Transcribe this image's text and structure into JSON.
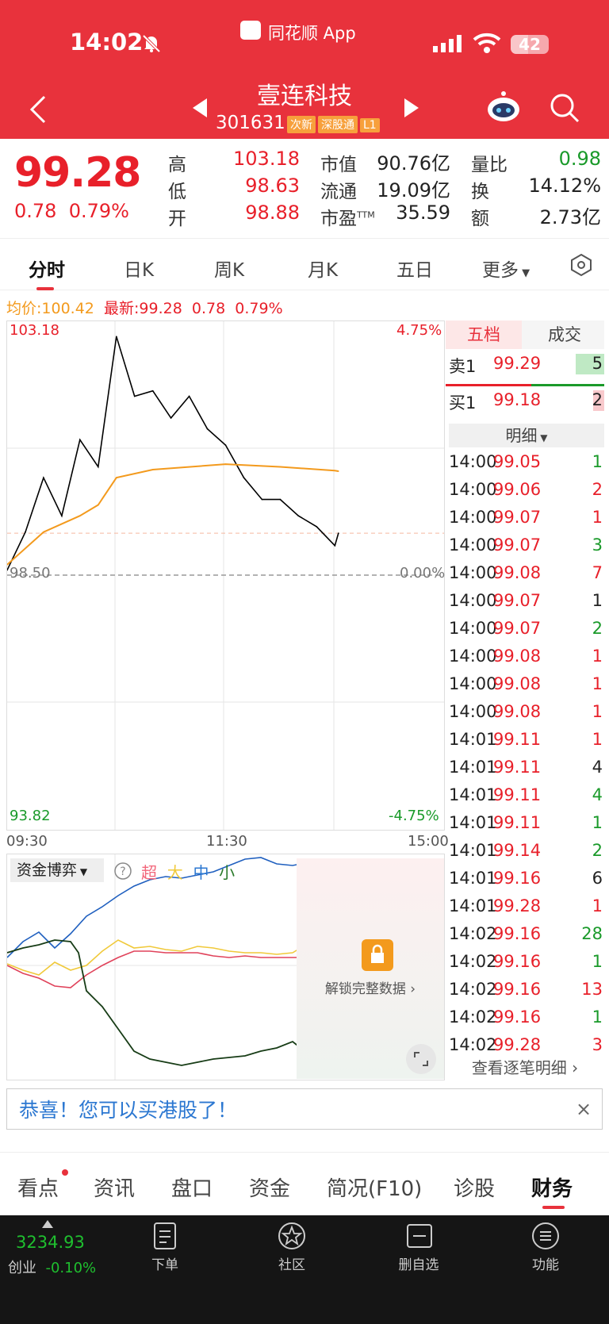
{
  "status_bar": {
    "time": "14:02",
    "app_name": "同花顺 App",
    "battery": "42"
  },
  "header": {
    "stock_name": "壹连科技",
    "stock_code": "301631",
    "tags": [
      "次新",
      "深股通",
      "L1"
    ]
  },
  "quote": {
    "price": "99.28",
    "change": "0.78",
    "change_pct": "0.79%",
    "high_label": "高",
    "high": "103.18",
    "low_label": "低",
    "low": "98.63",
    "open_label": "开",
    "open": "98.88",
    "mcap_label": "市值",
    "mcap": "90.76亿",
    "float_label": "流通",
    "float": "19.09亿",
    "pe_label": "市盈",
    "pe_sup": "TTM",
    "pe": "35.59",
    "vr_label": "量比",
    "vr": "0.98",
    "turn_label": "换",
    "turn": "14.12%",
    "amt_label": "额",
    "amt": "2.73亿"
  },
  "tabs": [
    "分时",
    "日K",
    "周K",
    "月K",
    "五日",
    "更多"
  ],
  "avg_line": {
    "avg_label": "均价:",
    "avg": "100.42",
    "last_label": "最新:",
    "last": "99.28",
    "chg": "0.78",
    "pct": "0.79%"
  },
  "chart": {
    "y_top": "103.18",
    "y_top_pct": "4.75%",
    "y_mid": "98.50",
    "y_mid_pct": "0.00%",
    "y_bot": "93.82",
    "y_bot_pct": "-4.75%",
    "x_start": "09:30",
    "x_mid": "11:30",
    "x_end": "15:00"
  },
  "chart_data": {
    "type": "line",
    "prev_close": 98.5,
    "ylim": [
      93.82,
      103.18
    ],
    "x_range": [
      "09:30",
      "15:00"
    ],
    "series": [
      {
        "name": "最新",
        "color": "#000000",
        "x": [
          "09:30",
          "09:40",
          "09:50",
          "10:00",
          "10:10",
          "10:20",
          "10:30",
          "10:40",
          "10:50",
          "11:00",
          "11:10",
          "11:20",
          "11:30",
          "13:10",
          "13:20",
          "13:30",
          "13:40",
          "13:50",
          "14:00",
          "14:02"
        ],
        "values": [
          98.6,
          99.3,
          100.3,
          99.6,
          101.0,
          100.5,
          102.9,
          101.8,
          101.9,
          101.4,
          101.8,
          101.2,
          100.9,
          100.3,
          99.9,
          99.9,
          99.6,
          99.4,
          99.05,
          99.28
        ]
      },
      {
        "name": "均价",
        "color": "#f39a1d",
        "x": [
          "09:30",
          "09:50",
          "10:10",
          "10:20",
          "10:30",
          "10:50",
          "11:30",
          "13:30",
          "14:00",
          "14:02"
        ],
        "values": [
          98.7,
          99.3,
          99.6,
          99.8,
          100.3,
          100.45,
          100.55,
          100.5,
          100.43,
          100.42
        ]
      }
    ]
  },
  "side": {
    "tab_a": "五档",
    "tab_b": "成交",
    "sell1_label": "卖1",
    "sell1_price": "99.29",
    "sell1_vol": "5",
    "buy1_label": "买1",
    "buy1_price": "99.18",
    "buy1_vol": "2",
    "detail_label": "明细",
    "ticks": [
      {
        "t": "14:00",
        "p": "99.05",
        "v": "1",
        "c": "green"
      },
      {
        "t": "14:00",
        "p": "99.06",
        "v": "2",
        "c": "red"
      },
      {
        "t": "14:00",
        "p": "99.07",
        "v": "1",
        "c": "red"
      },
      {
        "t": "14:00",
        "p": "99.07",
        "v": "3",
        "c": "green"
      },
      {
        "t": "14:00",
        "p": "99.08",
        "v": "7",
        "c": "red"
      },
      {
        "t": "14:00",
        "p": "99.07",
        "v": "1",
        "c": "dark"
      },
      {
        "t": "14:00",
        "p": "99.07",
        "v": "2",
        "c": "green"
      },
      {
        "t": "14:00",
        "p": "99.08",
        "v": "1",
        "c": "red"
      },
      {
        "t": "14:00",
        "p": "99.08",
        "v": "1",
        "c": "red"
      },
      {
        "t": "14:00",
        "p": "99.08",
        "v": "1",
        "c": "red"
      },
      {
        "t": "14:01",
        "p": "99.11",
        "v": "1",
        "c": "red"
      },
      {
        "t": "14:01",
        "p": "99.11",
        "v": "4",
        "c": "dark"
      },
      {
        "t": "14:01",
        "p": "99.11",
        "v": "4",
        "c": "green"
      },
      {
        "t": "14:01",
        "p": "99.11",
        "v": "1",
        "c": "green"
      },
      {
        "t": "14:01",
        "p": "99.14",
        "v": "2",
        "c": "green"
      },
      {
        "t": "14:01",
        "p": "99.16",
        "v": "6",
        "c": "dark"
      },
      {
        "t": "14:01",
        "p": "99.28",
        "v": "1",
        "c": "red"
      },
      {
        "t": "14:02",
        "p": "99.16",
        "v": "28",
        "c": "green"
      },
      {
        "t": "14:02",
        "p": "99.16",
        "v": "1",
        "c": "green"
      },
      {
        "t": "14:02",
        "p": "99.16",
        "v": "13",
        "c": "red"
      },
      {
        "t": "14:02",
        "p": "99.16",
        "v": "1",
        "c": "green"
      },
      {
        "t": "14:02",
        "p": "99.28",
        "v": "3",
        "c": "red"
      }
    ],
    "more_label": "查看逐笔明细 ›"
  },
  "sub_chart": {
    "dropdown": "资金博弈",
    "legend": [
      "超",
      "大",
      "中",
      "小"
    ],
    "lock_text": "解锁完整数据 ›"
  },
  "banner": {
    "text": "恭喜！您可以买港股了！",
    "close": "×"
  },
  "bottom_tabs": [
    "看点",
    "资讯",
    "盘口",
    "资金",
    "简况(F10)",
    "诊股",
    "财务"
  ],
  "dock": {
    "index_value": "3234.93",
    "index_name": "创业",
    "index_pct": "-0.10%",
    "items": [
      "下单",
      "社区",
      "删自选",
      "功能"
    ]
  },
  "colors": {
    "brand": "#e8323c",
    "up": "#e8202a",
    "down": "#1a9a2a",
    "avg": "#f39a1d",
    "link": "#2b77d1"
  }
}
